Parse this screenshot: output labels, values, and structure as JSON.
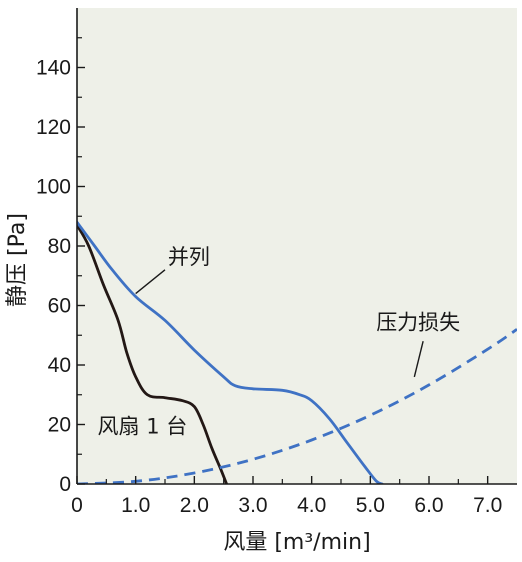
{
  "chart_data": {
    "type": "line",
    "xlabel": "风量 [m³/min]",
    "ylabel": "静压 [Pa]",
    "xlim": [
      0,
      7.5
    ],
    "ylim": [
      0,
      160
    ],
    "x_ticks": [
      "0",
      "1.0",
      "2.0",
      "3.0",
      "4.0",
      "5.0",
      "6.0",
      "7.0"
    ],
    "y_ticks": [
      "0",
      "20",
      "40",
      "60",
      "80",
      "100",
      "120",
      "140"
    ],
    "grid": false,
    "colors": {
      "single_fan": "#231815",
      "parallel": "#3f72c4",
      "pressure_loss": "#3f72c4"
    },
    "series": [
      {
        "name": "风扇 1 台",
        "style": "solid",
        "points": [
          [
            0,
            87
          ],
          [
            0.2,
            80
          ],
          [
            0.45,
            67
          ],
          [
            0.7,
            55
          ],
          [
            0.85,
            44
          ],
          [
            1.0,
            36
          ],
          [
            1.2,
            30
          ],
          [
            1.5,
            29
          ],
          [
            1.8,
            28
          ],
          [
            2.0,
            26
          ],
          [
            2.15,
            20
          ],
          [
            2.3,
            12
          ],
          [
            2.45,
            5
          ],
          [
            2.55,
            0
          ]
        ]
      },
      {
        "name": "并列",
        "style": "solid",
        "points": [
          [
            0,
            88
          ],
          [
            0.3,
            80
          ],
          [
            0.6,
            72
          ],
          [
            1.0,
            63
          ],
          [
            1.5,
            55
          ],
          [
            2.0,
            45
          ],
          [
            2.5,
            36
          ],
          [
            2.7,
            33
          ],
          [
            3.0,
            32
          ],
          [
            3.5,
            31.5
          ],
          [
            3.8,
            30
          ],
          [
            4.0,
            28
          ],
          [
            4.3,
            22
          ],
          [
            4.6,
            14
          ],
          [
            4.9,
            6
          ],
          [
            5.1,
            1
          ],
          [
            5.2,
            0
          ]
        ]
      },
      {
        "name": "压力损失",
        "style": "dashed",
        "points": [
          [
            0,
            0
          ],
          [
            1.0,
            0.9
          ],
          [
            2.0,
            3.7
          ],
          [
            3.0,
            8.3
          ],
          [
            4.0,
            14.8
          ],
          [
            5.0,
            23.1
          ],
          [
            6.0,
            33.3
          ],
          [
            7.0,
            45.3
          ],
          [
            7.5,
            52
          ]
        ]
      }
    ],
    "annotations": [
      {
        "text": "并列",
        "x": 1.55,
        "y": 74,
        "pointer": [
          [
            1.5,
            72
          ],
          [
            1.0,
            64
          ]
        ]
      },
      {
        "text": "风扇 1 台",
        "x": 0.35,
        "y": 17
      },
      {
        "text": "压力损失",
        "x": 5.1,
        "y": 52,
        "pointer": [
          [
            5.9,
            48
          ],
          [
            5.75,
            36
          ]
        ]
      }
    ]
  }
}
